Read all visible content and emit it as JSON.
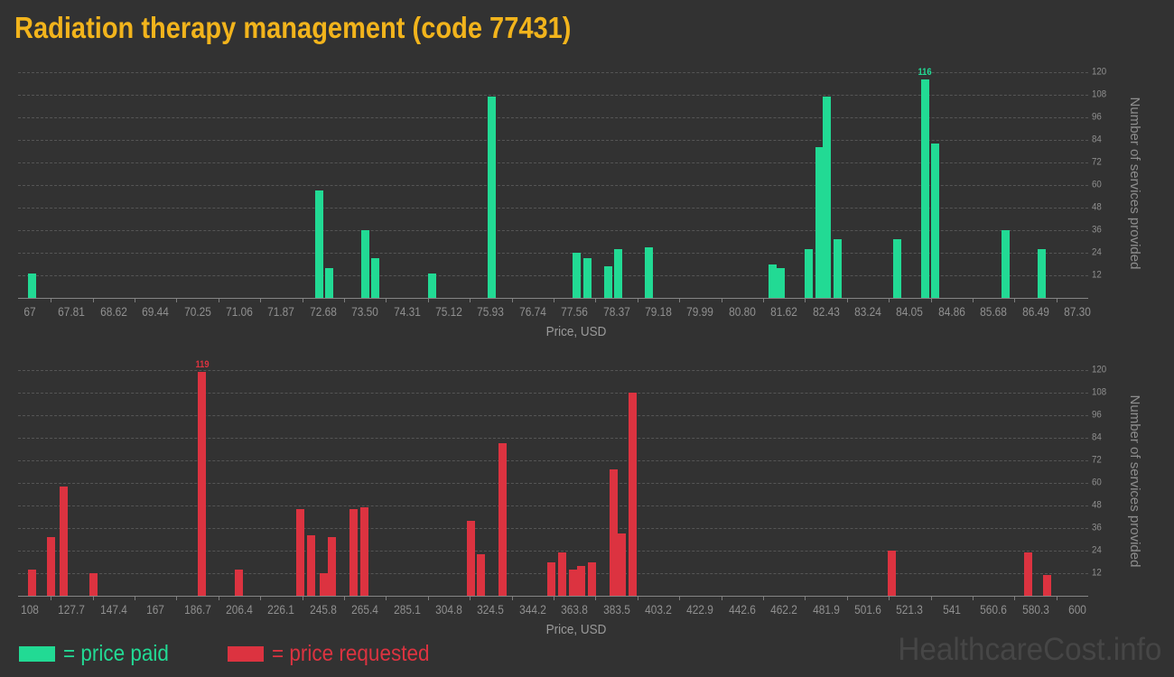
{
  "page": {
    "title": "Radiation therapy management (code 77431)",
    "watermark": "HealthcareCost.info"
  },
  "colors": {
    "background": "#323232",
    "title": "#f2b41c",
    "paid": "#22da94",
    "requested": "#dc3340",
    "grid": "#555555",
    "axis_line": "#858585",
    "tick_label": "#8f8f8f",
    "axis_title": "#9a9a9a",
    "watermark": "#464646"
  },
  "legend": {
    "items": [
      {
        "series": "paid",
        "label": "= price paid",
        "color": "#22da94"
      },
      {
        "series": "requested",
        "label": "= price requested",
        "color": "#dc3340"
      }
    ]
  },
  "chart_data": [
    {
      "type": "bar",
      "name": "price paid",
      "series": "paid",
      "color": "#22da94",
      "xlabel": "Price, USD",
      "ylabel": "Number of services provided",
      "x_min": 67,
      "x_max": 87.3,
      "x_tick_interval": 0.812,
      "x_tick_labels": [
        "67",
        "67.81",
        "68.62",
        "69.44",
        "70.25",
        "71.06",
        "71.87",
        "72.68",
        "73.50",
        "74.31",
        "75.12",
        "75.93",
        "76.74",
        "77.56",
        "78.37",
        "79.18",
        "79.99",
        "80.80",
        "81.62",
        "82.43",
        "83.24",
        "84.05",
        "84.86",
        "85.68",
        "86.49",
        "87.30"
      ],
      "y_ticks": [
        12,
        24,
        36,
        48,
        60,
        72,
        84,
        96,
        108,
        120
      ],
      "ylim": [
        0,
        126
      ],
      "grid": "dashed-horizontal",
      "legend_position": "below",
      "annotated_max": {
        "label": "116",
        "price": 84.35
      },
      "points": [
        {
          "price": 67.05,
          "count": 13
        },
        {
          "price": 72.6,
          "count": 57
        },
        {
          "price": 72.8,
          "count": 16
        },
        {
          "price": 73.5,
          "count": 36
        },
        {
          "price": 73.7,
          "count": 21
        },
        {
          "price": 74.8,
          "count": 13
        },
        {
          "price": 75.95,
          "count": 107
        },
        {
          "price": 77.6,
          "count": 24
        },
        {
          "price": 77.8,
          "count": 21
        },
        {
          "price": 78.2,
          "count": 17
        },
        {
          "price": 78.4,
          "count": 26
        },
        {
          "price": 79.0,
          "count": 27
        },
        {
          "price": 81.4,
          "count": 18
        },
        {
          "price": 81.55,
          "count": 16
        },
        {
          "price": 82.1,
          "count": 26
        },
        {
          "price": 82.3,
          "count": 80
        },
        {
          "price": 82.45,
          "count": 107
        },
        {
          "price": 82.65,
          "count": 31
        },
        {
          "price": 83.8,
          "count": 31
        },
        {
          "price": 84.35,
          "count": 116,
          "label": "116"
        },
        {
          "price": 84.55,
          "count": 82
        },
        {
          "price": 85.9,
          "count": 36
        },
        {
          "price": 86.6,
          "count": 26
        }
      ]
    },
    {
      "type": "bar",
      "name": "price requested",
      "series": "requested",
      "color": "#dc3340",
      "xlabel": "Price, USD",
      "ylabel": "Number of services provided",
      "x_min": 108,
      "x_max": 600,
      "x_tick_interval": 19.68,
      "x_tick_labels": [
        "108",
        "127.7",
        "147.4",
        "167",
        "186.7",
        "206.4",
        "226.1",
        "245.8",
        "265.4",
        "285.1",
        "304.8",
        "324.5",
        "344.2",
        "363.8",
        "383.5",
        "403.2",
        "422.9",
        "442.6",
        "462.2",
        "481.9",
        "501.6",
        "521.3",
        "541",
        "560.6",
        "580.3",
        "600"
      ],
      "y_ticks": [
        12,
        24,
        36,
        48,
        60,
        72,
        84,
        96,
        108,
        120
      ],
      "ylim": [
        0,
        126
      ],
      "grid": "dashed-horizontal",
      "legend_position": "below",
      "annotated_max": {
        "label": "119",
        "price": 189
      },
      "points": [
        {
          "price": 109,
          "count": 14
        },
        {
          "price": 118,
          "count": 31
        },
        {
          "price": 124,
          "count": 58
        },
        {
          "price": 138,
          "count": 12
        },
        {
          "price": 189,
          "count": 119,
          "label": "119"
        },
        {
          "price": 206,
          "count": 14
        },
        {
          "price": 235,
          "count": 46
        },
        {
          "price": 240,
          "count": 32
        },
        {
          "price": 246,
          "count": 12
        },
        {
          "price": 250,
          "count": 31
        },
        {
          "price": 260,
          "count": 46
        },
        {
          "price": 265,
          "count": 47
        },
        {
          "price": 315,
          "count": 40
        },
        {
          "price": 320,
          "count": 22
        },
        {
          "price": 330,
          "count": 81
        },
        {
          "price": 353,
          "count": 18
        },
        {
          "price": 358,
          "count": 23
        },
        {
          "price": 363,
          "count": 14
        },
        {
          "price": 367,
          "count": 16
        },
        {
          "price": 372,
          "count": 18
        },
        {
          "price": 382,
          "count": 67
        },
        {
          "price": 386,
          "count": 33
        },
        {
          "price": 391,
          "count": 108
        },
        {
          "price": 513,
          "count": 24
        },
        {
          "price": 577,
          "count": 23
        },
        {
          "price": 586,
          "count": 11
        }
      ]
    }
  ]
}
